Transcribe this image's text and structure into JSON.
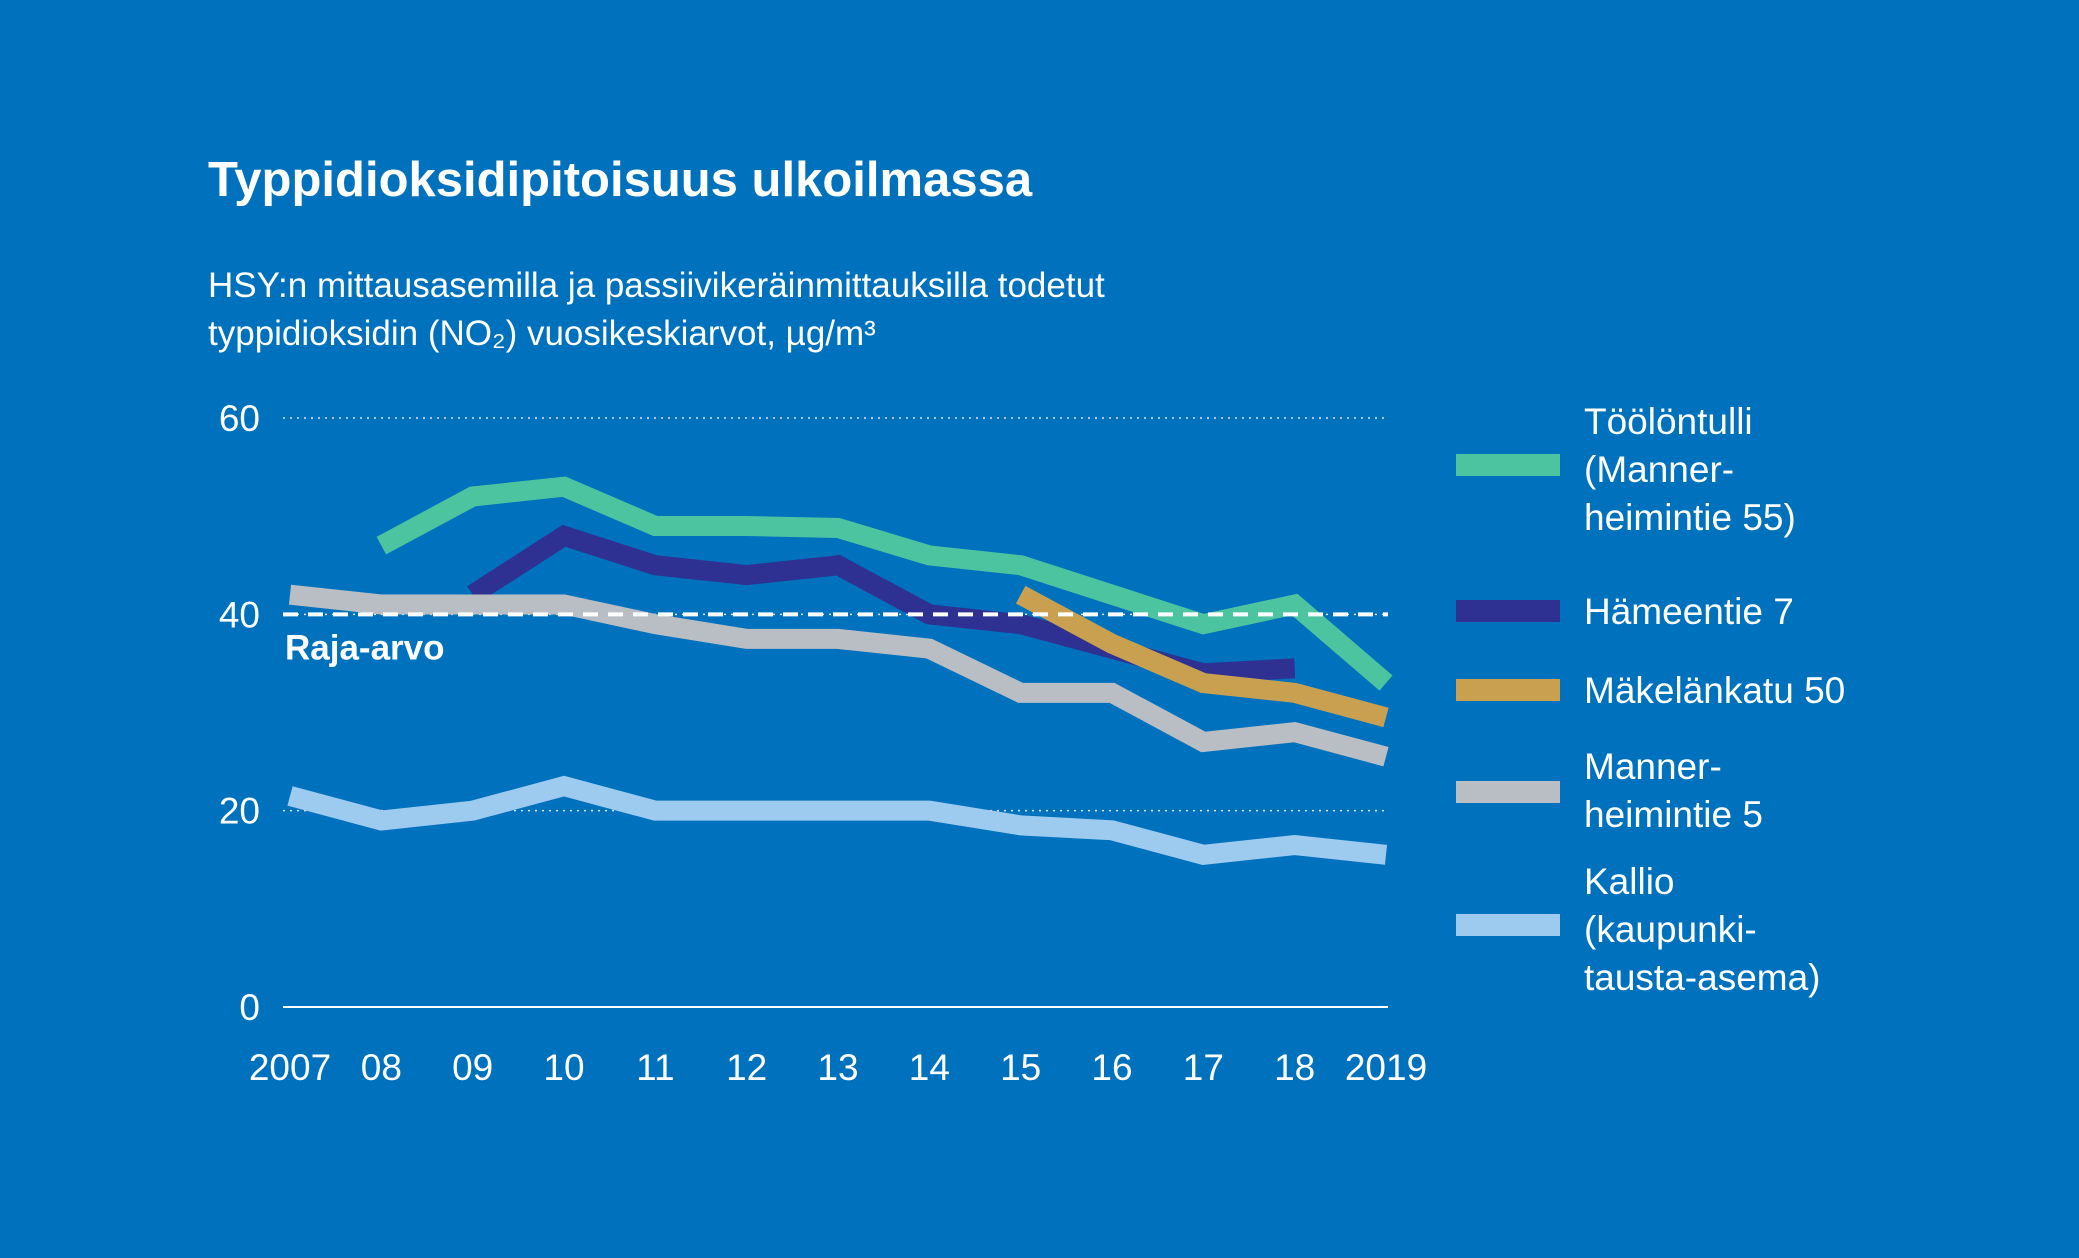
{
  "title": "Typpidioksidipitoisuus ulkoilmassa",
  "subtitle_line1": "HSY:n mittausasemilla ja passiivikeräinmittauksilla todetut",
  "subtitle_line2": "typpidioksidin (NO₂) vuosikeskiarvot, µg/m³",
  "limit_label": "Raja-arvo",
  "colors": {
    "background": "#0071bc",
    "toolontulli": "#4dc4a0",
    "hameentie": "#2e3192",
    "makelankatu": "#c9a050",
    "mannerheimintie5": "#b8bec4",
    "kallio": "#9dcbf0"
  },
  "chart_data": {
    "type": "line",
    "title": "Typpidioksidipitoisuus ulkoilmassa",
    "subtitle": "HSY:n mittausasemilla ja passiivikeräinmittauksilla todetut typpidioksidin (NO₂) vuosikeskiarvot, µg/m³",
    "x": [
      2007,
      2008,
      2009,
      2010,
      2011,
      2012,
      2013,
      2014,
      2015,
      2016,
      2017,
      2018,
      2019
    ],
    "x_tick_labels": [
      "2007",
      "08",
      "09",
      "10",
      "11",
      "12",
      "13",
      "14",
      "15",
      "16",
      "17",
      "18",
      "2019"
    ],
    "y_ticks": [
      0,
      20,
      40,
      60
    ],
    "y_tick_labels": [
      "0",
      "20",
      "40",
      "60"
    ],
    "ylim": [
      0,
      60
    ],
    "limit_value": 40,
    "limit_label": "Raja-arvo",
    "grid": true,
    "legend_position": "right",
    "series": [
      {
        "key": "toolontulli",
        "name": "Töölöntulli\n(Manner-\nheimintie 55)",
        "values": [
          null,
          47,
          52,
          53,
          49,
          49,
          48.8,
          46,
          45,
          42,
          39,
          41,
          33
        ]
      },
      {
        "key": "hameentie",
        "name": "Hämeentie 7",
        "values": [
          null,
          null,
          42,
          48,
          45,
          44,
          45,
          40,
          39,
          36.5,
          34,
          34.5,
          null
        ]
      },
      {
        "key": "makelankatu",
        "name": "Mäkelänkatu 50",
        "values": [
          null,
          null,
          null,
          null,
          null,
          null,
          null,
          null,
          42,
          37,
          33,
          32,
          29.5
        ]
      },
      {
        "key": "mannerheimintie5",
        "name": "Manner-\nheimintie 5",
        "values": [
          42,
          41,
          41,
          41,
          39,
          37.5,
          37.5,
          36.5,
          32,
          32,
          27,
          28,
          25.5
        ]
      },
      {
        "key": "kallio",
        "name": "Kallio\n(kaupunki-\ntausta-asema)",
        "values": [
          21.5,
          19,
          20,
          22.5,
          20,
          20,
          20,
          20,
          18.5,
          18,
          15.5,
          16.5,
          15.5
        ]
      }
    ]
  }
}
